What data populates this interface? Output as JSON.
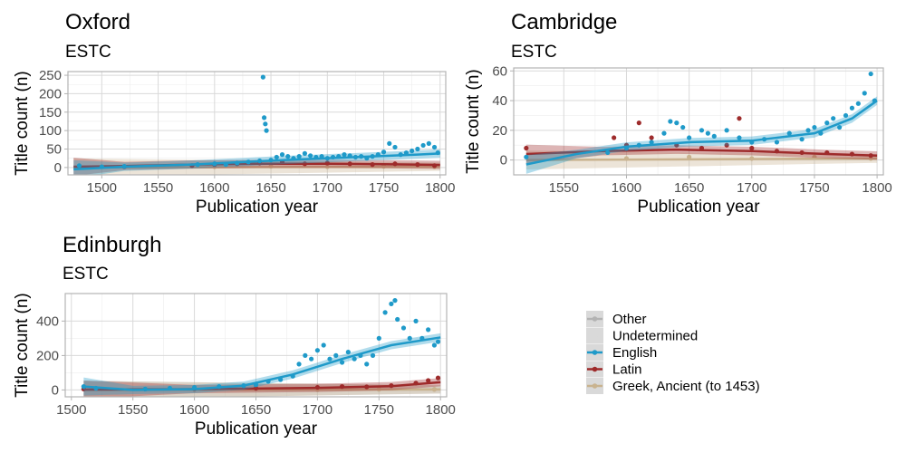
{
  "colors": {
    "Other": "#b3b3b3",
    "Undetermined": "#d9d9d9",
    "English": "#1f9ac9",
    "Latin": "#9e2b2b",
    "Greek, Ancient (to 1453)": "#c9b38f",
    "grid_major": "#d9d9d9",
    "grid_minor": "#ededed",
    "panel_border": "#b3b3b3"
  },
  "legend": {
    "entries": [
      "Other",
      "Undetermined",
      "English",
      "Latin",
      "Greek, Ancient (to 1453)"
    ],
    "position": "right"
  },
  "chart_data": [
    {
      "type": "scatter",
      "title": "Oxford",
      "subtitle": "ESTC",
      "xlabel": "Publication year",
      "ylabel": "Title count (n)",
      "xlim": [
        1470,
        1805
      ],
      "ylim": [
        -20,
        260
      ],
      "xticks": [
        1500,
        1550,
        1600,
        1650,
        1700,
        1750,
        1800
      ],
      "yticks": [
        0,
        50,
        100,
        150,
        200,
        250
      ],
      "grid": true,
      "series": [
        {
          "name": "English",
          "points": [
            [
              1480,
              5
            ],
            [
              1500,
              2
            ],
            [
              1520,
              3
            ],
            [
              1585,
              8
            ],
            [
              1600,
              10
            ],
            [
              1610,
              8
            ],
            [
              1620,
              12
            ],
            [
              1630,
              15
            ],
            [
              1640,
              18
            ],
            [
              1643,
              245
            ],
            [
              1644,
              135
            ],
            [
              1645,
              118
            ],
            [
              1646,
              100
            ],
            [
              1650,
              20
            ],
            [
              1655,
              28
            ],
            [
              1660,
              35
            ],
            [
              1665,
              30
            ],
            [
              1670,
              25
            ],
            [
              1675,
              30
            ],
            [
              1680,
              38
            ],
            [
              1685,
              32
            ],
            [
              1690,
              28
            ],
            [
              1695,
              30
            ],
            [
              1700,
              25
            ],
            [
              1705,
              28
            ],
            [
              1710,
              30
            ],
            [
              1715,
              35
            ],
            [
              1720,
              32
            ],
            [
              1725,
              28
            ],
            [
              1730,
              30
            ],
            [
              1735,
              25
            ],
            [
              1740,
              30
            ],
            [
              1745,
              35
            ],
            [
              1750,
              42
            ],
            [
              1755,
              65
            ],
            [
              1760,
              55
            ],
            [
              1765,
              35
            ],
            [
              1770,
              40
            ],
            [
              1775,
              45
            ],
            [
              1780,
              50
            ],
            [
              1785,
              60
            ],
            [
              1790,
              65
            ],
            [
              1795,
              55
            ],
            [
              1798,
              40
            ]
          ],
          "trend": [
            [
              1475,
              -5
            ],
            [
              1520,
              2
            ],
            [
              1580,
              8
            ],
            [
              1620,
              14
            ],
            [
              1660,
              20
            ],
            [
              1700,
              25
            ],
            [
              1740,
              30
            ],
            [
              1780,
              35
            ],
            [
              1800,
              38
            ]
          ]
        },
        {
          "name": "Latin",
          "points": [
            [
              1480,
              3
            ],
            [
              1520,
              2
            ],
            [
              1580,
              5
            ],
            [
              1600,
              8
            ],
            [
              1620,
              10
            ],
            [
              1640,
              12
            ],
            [
              1660,
              15
            ],
            [
              1680,
              10
            ],
            [
              1700,
              12
            ],
            [
              1720,
              10
            ],
            [
              1740,
              8
            ],
            [
              1760,
              10
            ],
            [
              1780,
              8
            ],
            [
              1795,
              5
            ]
          ],
          "trend": [
            [
              1475,
              2
            ],
            [
              1520,
              4
            ],
            [
              1580,
              8
            ],
            [
              1640,
              10
            ],
            [
              1700,
              10
            ],
            [
              1750,
              9
            ],
            [
              1800,
              7
            ]
          ]
        },
        {
          "name": "Greek, Ancient (to 1453)",
          "points": [
            [
              1600,
              2
            ],
            [
              1650,
              3
            ],
            [
              1700,
              2
            ],
            [
              1750,
              3
            ],
            [
              1795,
              2
            ]
          ],
          "trend": [
            [
              1475,
              0
            ],
            [
              1800,
              2
            ]
          ]
        }
      ]
    },
    {
      "type": "scatter",
      "title": "Cambridge",
      "subtitle": "ESTC",
      "xlabel": "Publication year",
      "ylabel": "Title count (n)",
      "xlim": [
        1510,
        1805
      ],
      "ylim": [
        -10,
        62
      ],
      "xticks": [
        1550,
        1600,
        1650,
        1700,
        1750,
        1800
      ],
      "yticks": [
        0,
        20,
        40,
        60
      ],
      "grid": true,
      "series": [
        {
          "name": "English",
          "points": [
            [
              1520,
              2
            ],
            [
              1585,
              5
            ],
            [
              1600,
              8
            ],
            [
              1610,
              10
            ],
            [
              1620,
              12
            ],
            [
              1630,
              18
            ],
            [
              1635,
              26
            ],
            [
              1640,
              25
            ],
            [
              1645,
              22
            ],
            [
              1650,
              15
            ],
            [
              1660,
              20
            ],
            [
              1665,
              18
            ],
            [
              1670,
              16
            ],
            [
              1680,
              20
            ],
            [
              1690,
              15
            ],
            [
              1700,
              12
            ],
            [
              1710,
              14
            ],
            [
              1720,
              12
            ],
            [
              1730,
              18
            ],
            [
              1740,
              14
            ],
            [
              1745,
              20
            ],
            [
              1750,
              22
            ],
            [
              1755,
              18
            ],
            [
              1760,
              25
            ],
            [
              1765,
              28
            ],
            [
              1770,
              22
            ],
            [
              1775,
              30
            ],
            [
              1780,
              35
            ],
            [
              1785,
              38
            ],
            [
              1790,
              45
            ],
            [
              1795,
              58
            ],
            [
              1798,
              40
            ]
          ],
          "trend": [
            [
              1520,
              -3
            ],
            [
              1560,
              4
            ],
            [
              1600,
              9
            ],
            [
              1650,
              12
            ],
            [
              1700,
              13
            ],
            [
              1750,
              18
            ],
            [
              1780,
              28
            ],
            [
              1800,
              40
            ]
          ]
        },
        {
          "name": "Latin",
          "points": [
            [
              1520,
              8
            ],
            [
              1590,
              15
            ],
            [
              1600,
              10
            ],
            [
              1610,
              25
            ],
            [
              1620,
              15
            ],
            [
              1640,
              10
            ],
            [
              1660,
              8
            ],
            [
              1680,
              10
            ],
            [
              1690,
              28
            ],
            [
              1700,
              8
            ],
            [
              1720,
              6
            ],
            [
              1740,
              5
            ],
            [
              1760,
              5
            ],
            [
              1780,
              4
            ],
            [
              1795,
              3
            ]
          ],
          "trend": [
            [
              1520,
              4
            ],
            [
              1580,
              6
            ],
            [
              1640,
              7
            ],
            [
              1700,
              6
            ],
            [
              1760,
              4
            ],
            [
              1800,
              3
            ]
          ]
        },
        {
          "name": "Greek, Ancient (to 1453)",
          "points": [
            [
              1600,
              1
            ],
            [
              1650,
              2
            ],
            [
              1700,
              1
            ],
            [
              1750,
              2
            ],
            [
              1795,
              1
            ]
          ],
          "trend": [
            [
              1520,
              0
            ],
            [
              1800,
              1
            ]
          ]
        }
      ]
    },
    {
      "type": "scatter",
      "title": "Edinburgh",
      "subtitle": "ESTC",
      "xlabel": "Publication year",
      "ylabel": "Title count (n)",
      "xlim": [
        1495,
        1805
      ],
      "ylim": [
        -40,
        560
      ],
      "xticks": [
        1500,
        1550,
        1600,
        1650,
        1700,
        1750,
        1800
      ],
      "yticks": [
        0,
        200,
        400
      ],
      "grid": true,
      "series": [
        {
          "name": "English",
          "points": [
            [
              1510,
              20
            ],
            [
              1520,
              10
            ],
            [
              1560,
              5
            ],
            [
              1580,
              10
            ],
            [
              1600,
              15
            ],
            [
              1620,
              20
            ],
            [
              1640,
              25
            ],
            [
              1650,
              30
            ],
            [
              1660,
              50
            ],
            [
              1670,
              60
            ],
            [
              1680,
              80
            ],
            [
              1685,
              150
            ],
            [
              1690,
              200
            ],
            [
              1695,
              180
            ],
            [
              1700,
              230
            ],
            [
              1705,
              260
            ],
            [
              1710,
              180
            ],
            [
              1715,
              200
            ],
            [
              1720,
              160
            ],
            [
              1725,
              220
            ],
            [
              1730,
              180
            ],
            [
              1735,
              200
            ],
            [
              1740,
              150
            ],
            [
              1745,
              200
            ],
            [
              1750,
              300
            ],
            [
              1755,
              450
            ],
            [
              1760,
              500
            ],
            [
              1763,
              520
            ],
            [
              1765,
              410
            ],
            [
              1770,
              360
            ],
            [
              1775,
              300
            ],
            [
              1780,
              400
            ],
            [
              1785,
              300
            ],
            [
              1790,
              350
            ],
            [
              1795,
              260
            ],
            [
              1798,
              280
            ]
          ],
          "trend": [
            [
              1510,
              20
            ],
            [
              1550,
              0
            ],
            [
              1600,
              5
            ],
            [
              1640,
              25
            ],
            [
              1680,
              90
            ],
            [
              1720,
              180
            ],
            [
              1760,
              260
            ],
            [
              1800,
              305
            ]
          ]
        },
        {
          "name": "Latin",
          "points": [
            [
              1510,
              5
            ],
            [
              1560,
              5
            ],
            [
              1600,
              8
            ],
            [
              1650,
              10
            ],
            [
              1700,
              15
            ],
            [
              1720,
              20
            ],
            [
              1740,
              18
            ],
            [
              1760,
              25
            ],
            [
              1780,
              40
            ],
            [
              1790,
              55
            ],
            [
              1798,
              70
            ]
          ],
          "trend": [
            [
              1510,
              2
            ],
            [
              1600,
              5
            ],
            [
              1700,
              12
            ],
            [
              1760,
              22
            ],
            [
              1800,
              45
            ]
          ]
        },
        {
          "name": "Greek, Ancient (to 1453)",
          "points": [
            [
              1600,
              2
            ],
            [
              1700,
              3
            ],
            [
              1750,
              4
            ],
            [
              1795,
              3
            ]
          ],
          "trend": [
            [
              1510,
              0
            ],
            [
              1800,
              3
            ]
          ]
        },
        {
          "name": "Other",
          "points": [
            [
              1700,
              2
            ],
            [
              1750,
              3
            ],
            [
              1795,
              4
            ]
          ],
          "trend": [
            [
              1510,
              0
            ],
            [
              1800,
              3
            ]
          ]
        }
      ]
    }
  ]
}
